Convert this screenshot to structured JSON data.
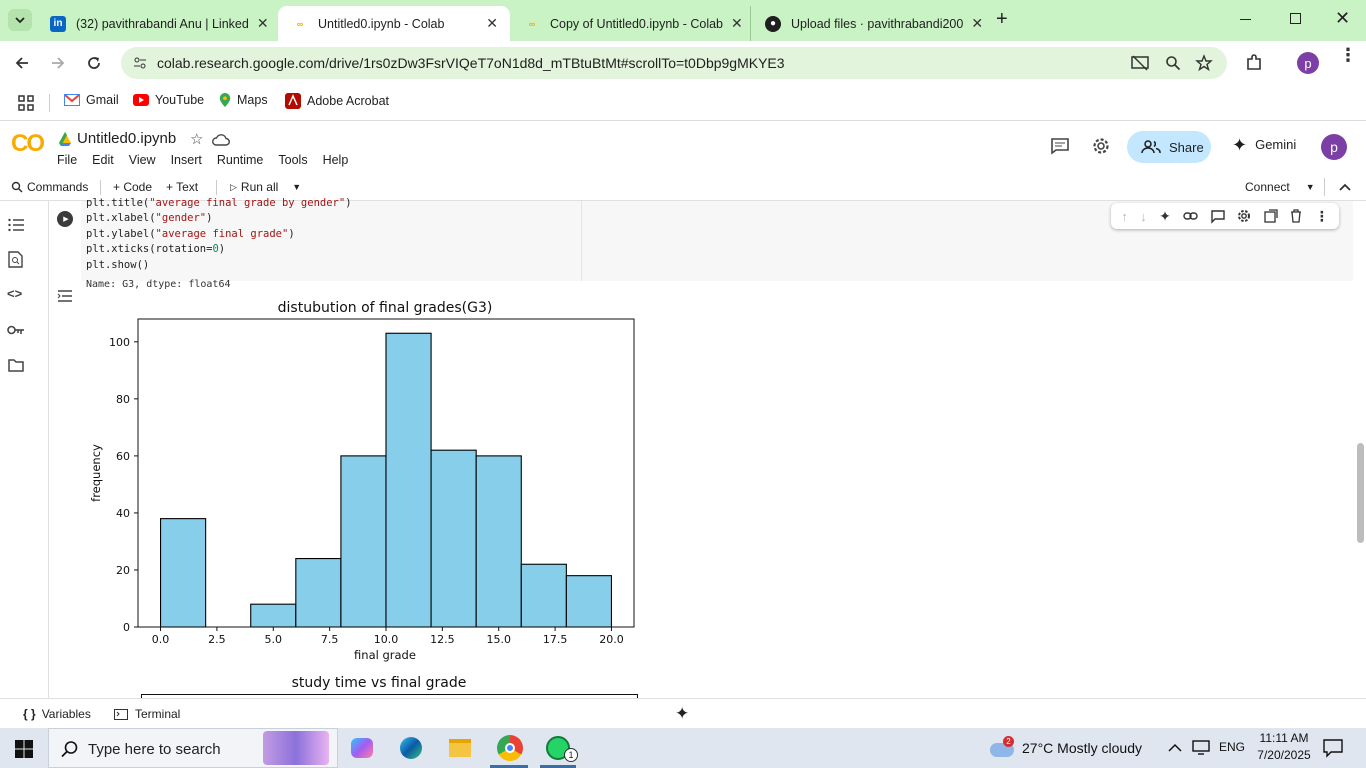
{
  "browser": {
    "tabs": [
      {
        "title": "(32) pavithrabandi Anu | Linked",
        "icon": "linkedin-icon",
        "color": "#0a66c2",
        "active": false
      },
      {
        "title": "Untitled0.ipynb - Colab",
        "icon": "colab-icon",
        "color": "#f9ab00",
        "active": true
      },
      {
        "title": "Copy of Untitled0.ipynb - Colab",
        "icon": "colab-icon",
        "color": "#f9ab00",
        "active": false
      },
      {
        "title": "Upload files · pavithrabandi200",
        "icon": "github-icon",
        "color": "#1f1f1f",
        "active": false
      }
    ],
    "url": "colab.research.google.com/drive/1rs0zDw3FsrVIQeT7oN1d8d_mTBtuBtMt#scrollTo=t0Dbp9gMKYE3",
    "profile_initial": "p",
    "bookmarks": [
      {
        "label": "Gmail",
        "icon": "gmail-icon"
      },
      {
        "label": "YouTube",
        "icon": "youtube-icon"
      },
      {
        "label": "Maps",
        "icon": "maps-icon"
      },
      {
        "label": "Adobe Acrobat",
        "icon": "acrobat-icon"
      }
    ]
  },
  "colab": {
    "logo": "CO",
    "notebook_title": "Untitled0.ipynb",
    "menu": [
      "File",
      "Edit",
      "View",
      "Insert",
      "Runtime",
      "Tools",
      "Help"
    ],
    "share_label": "Share",
    "gemini_label": "Gemini",
    "profile_initial": "p",
    "commands_label": "Commands",
    "code_label": "+ Code",
    "text_label": "+ Text",
    "run_all_label": "Run all",
    "connect_label": "Connect"
  },
  "code_lines": [
    {
      "fn": "plt.title(",
      "arg": "\"average final grade by gender\"",
      "end": ")"
    },
    {
      "fn": "plt.xlabel(",
      "arg": "\"gender\"",
      "end": ")"
    },
    {
      "fn": "plt.ylabel(",
      "arg": "\"average final grade\"",
      "end": ")"
    },
    {
      "fn": "plt.xticks(rotation=",
      "arg": "0",
      "end": ")"
    },
    {
      "fn": "plt.show()",
      "arg": "",
      "end": ""
    }
  ],
  "output_text": "Name: G3, dtype: float64",
  "chart_data": [
    {
      "type": "bar",
      "title": "distubution of final grades(G3)",
      "xlabel": "final grade",
      "ylabel": "frequency",
      "bin_edges": [
        0,
        2,
        4,
        6,
        8,
        10,
        12,
        14,
        16,
        18,
        20
      ],
      "values": [
        38,
        0,
        8,
        24,
        60,
        103,
        62,
        60,
        22,
        18
      ],
      "xticks": [
        "0.0",
        "2.5",
        "5.0",
        "7.5",
        "10.0",
        "12.5",
        "15.0",
        "17.5",
        "20.0"
      ],
      "yticks": [
        "0",
        "20",
        "40",
        "60",
        "80",
        "100"
      ],
      "xlim": [
        -1,
        21
      ],
      "ylim": [
        0,
        108
      ],
      "color": "#87ceeb"
    },
    {
      "type": "scatter",
      "title": "study time vs final grade"
    }
  ],
  "statusbar": {
    "variables_label": "Variables",
    "terminal_label": "Terminal"
  },
  "taskbar": {
    "search_placeholder": "Type here to search",
    "weather_badge": "2",
    "weather": "27°C  Mostly cloudy",
    "language": "ENG",
    "time": "11:11 AM",
    "date": "7/20/2025",
    "whatsapp_badge": "1"
  }
}
